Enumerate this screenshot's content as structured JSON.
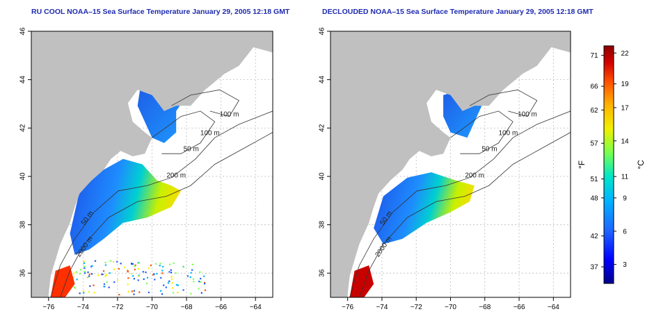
{
  "maps": [
    {
      "title": "RU COOL NOAA–15 Sea Surface Temperature January 29, 2005 12:18 GMT",
      "variant": "raw"
    },
    {
      "title": "DECLOUDED NOAA–15 Sea Surface Temperature January 29, 2005 12:18 GMT",
      "variant": "declouded"
    }
  ],
  "axes": {
    "lon_ticks": [
      "−76",
      "−74",
      "−72",
      "−70",
      "−68",
      "−66",
      "−64"
    ],
    "lat_ticks": [
      "36",
      "38",
      "40",
      "42",
      "44",
      "46"
    ],
    "lon_range": [
      -77,
      -63
    ],
    "lat_range": [
      35,
      46
    ]
  },
  "contour_labels": [
    "100 m",
    "100 m",
    "50 m",
    "200 m",
    "50 m",
    "2000 m"
  ],
  "colorbar": {
    "fahrenheit_label": "°F",
    "celsius_label": "°C",
    "fahrenheit_ticks": [
      "71",
      "66",
      "62",
      "57",
      "51",
      "48",
      "42",
      "37"
    ],
    "celsius_ticks": [
      "22",
      "19",
      "17",
      "14",
      "11",
      "9",
      "6",
      "3"
    ],
    "colors": [
      "#00008b",
      "#0000ff",
      "#1e64ff",
      "#00b4ff",
      "#00e6c8",
      "#78ff50",
      "#f0f000",
      "#ffb400",
      "#ff5000",
      "#d20000",
      "#8b0000"
    ]
  },
  "colors": {
    "land": "#c0c0c0",
    "water": "#ffffff",
    "title": "#1e2bb0",
    "contour": "#333333"
  }
}
